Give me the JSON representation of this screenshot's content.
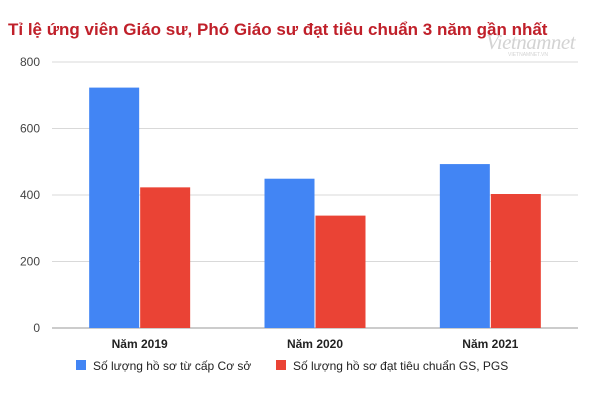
{
  "title": "Tỉ lệ ứng viên Giáo sư, Phó Giáo sư đạt tiêu chuẩn 3 năm gần nhất",
  "watermark": {
    "logo": "Vietnamnet",
    "url": "VIETNAMNET.VN"
  },
  "chart_data": {
    "type": "bar",
    "categories": [
      "Năm 2019",
      "Năm 2020",
      "Năm 2021"
    ],
    "series": [
      {
        "name": "Số lượng hồ sơ từ cấp Cơ sở",
        "color": "#4285f4",
        "values": [
          723,
          449,
          493
        ]
      },
      {
        "name": "Số lượng hồ sơ đạt tiêu chuẩn GS, PGS",
        "color": "#ea4335",
        "values": [
          423,
          338,
          403
        ]
      }
    ],
    "ylim": [
      0,
      800
    ],
    "yticks": [
      0,
      200,
      400,
      600,
      800
    ],
    "grid": true,
    "legend_position": "bottom"
  }
}
